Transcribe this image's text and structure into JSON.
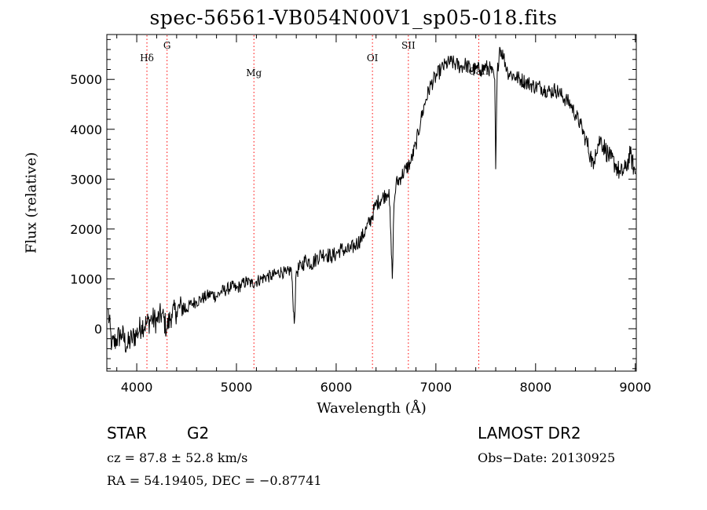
{
  "chart_data": {
    "type": "line",
    "title": "spec-56561-VB054N00V1_sp05-018.fits",
    "xlabel": "Wavelength (Å)",
    "ylabel": "Flux (relative)",
    "xlim": [
      3700,
      9010
    ],
    "ylim": [
      -850,
      5900
    ],
    "xticks": [
      4000,
      5000,
      6000,
      7000,
      8000,
      9000
    ],
    "yticks": [
      0,
      1000,
      2000,
      3000,
      4000,
      5000
    ],
    "grid": false,
    "line_color": "#000000",
    "marker_color": "#ff0000",
    "spectral_lines": [
      {
        "label": "Hδ",
        "wavelength": 4102
      },
      {
        "label": "G",
        "wavelength": 4304
      },
      {
        "label": "Mg",
        "wavelength": 5175
      },
      {
        "label": "OI",
        "wavelength": 6364
      },
      {
        "label": "SII",
        "wavelength": 6724
      },
      {
        "label": "CaII",
        "wavelength": 7430
      }
    ],
    "series": [
      {
        "x": [
          3710,
          3750,
          3800,
          3850,
          3900,
          3950,
          4000,
          4050,
          4100,
          4150,
          4200,
          4250,
          4300,
          4350,
          4400,
          4450,
          4500,
          4550,
          4600,
          4650,
          4700,
          4750,
          4800,
          4850,
          4900,
          4950,
          5000,
          5050,
          5100,
          5150,
          5200,
          5250,
          5300,
          5350,
          5400,
          5450,
          5500,
          5550,
          5580,
          5600,
          5650,
          5700,
          5750,
          5800,
          5850,
          5900,
          5950,
          6000,
          6050,
          6100,
          6150,
          6200,
          6250,
          6300,
          6350,
          6400,
          6450,
          6500,
          6530,
          6563,
          6580,
          6600,
          6650,
          6700,
          6750,
          6800,
          6850,
          6900,
          6950,
          7000,
          7050,
          7100,
          7150,
          7200,
          7250,
          7300,
          7350,
          7400,
          7450,
          7500,
          7550,
          7590,
          7600,
          7615,
          7640,
          7680,
          7720,
          7760,
          7800,
          7850,
          7900,
          7950,
          8000,
          8050,
          8100,
          8150,
          8200,
          8250,
          8300,
          8350,
          8400,
          8450,
          8500,
          8550,
          8580,
          8600,
          8650,
          8700,
          8750,
          8800,
          8850,
          8900,
          8950,
          9000
        ],
        "y": [
          400,
          -350,
          -200,
          -100,
          -350,
          -200,
          -100,
          80,
          100,
          200,
          150,
          300,
          0,
          300,
          350,
          450,
          400,
          500,
          550,
          600,
          650,
          700,
          650,
          750,
          780,
          850,
          800,
          880,
          950,
          900,
          950,
          1000,
          1050,
          1050,
          1100,
          1150,
          1100,
          1200,
          100,
          1150,
          1250,
          1400,
          1300,
          1400,
          1500,
          1500,
          1450,
          1500,
          1600,
          1550,
          1600,
          1700,
          1800,
          2000,
          2200,
          2500,
          2600,
          2700,
          2800,
          1000,
          2500,
          2900,
          3050,
          3200,
          3350,
          3700,
          4200,
          4600,
          4900,
          5050,
          5200,
          5300,
          5350,
          5300,
          5250,
          5300,
          5200,
          5200,
          5200,
          5250,
          5200,
          5000,
          3200,
          5100,
          5650,
          5450,
          5150,
          5100,
          5050,
          5000,
          4950,
          4900,
          4850,
          4850,
          4800,
          4750,
          4800,
          4700,
          4600,
          4500,
          4300,
          4100,
          3800,
          3500,
          3200,
          3600,
          3800,
          3600,
          3400,
          3300,
          3100,
          3200,
          3500,
          3100
        ]
      }
    ]
  },
  "object": {
    "class": "STAR",
    "subclass": "G2",
    "survey": "LAMOST DR2",
    "cz": "cz = 87.8 ± 52.8 km/s",
    "obs_date": "Obs−Date: 20130925",
    "radec": "RA =  54.19405, DEC =  −0.87741"
  }
}
